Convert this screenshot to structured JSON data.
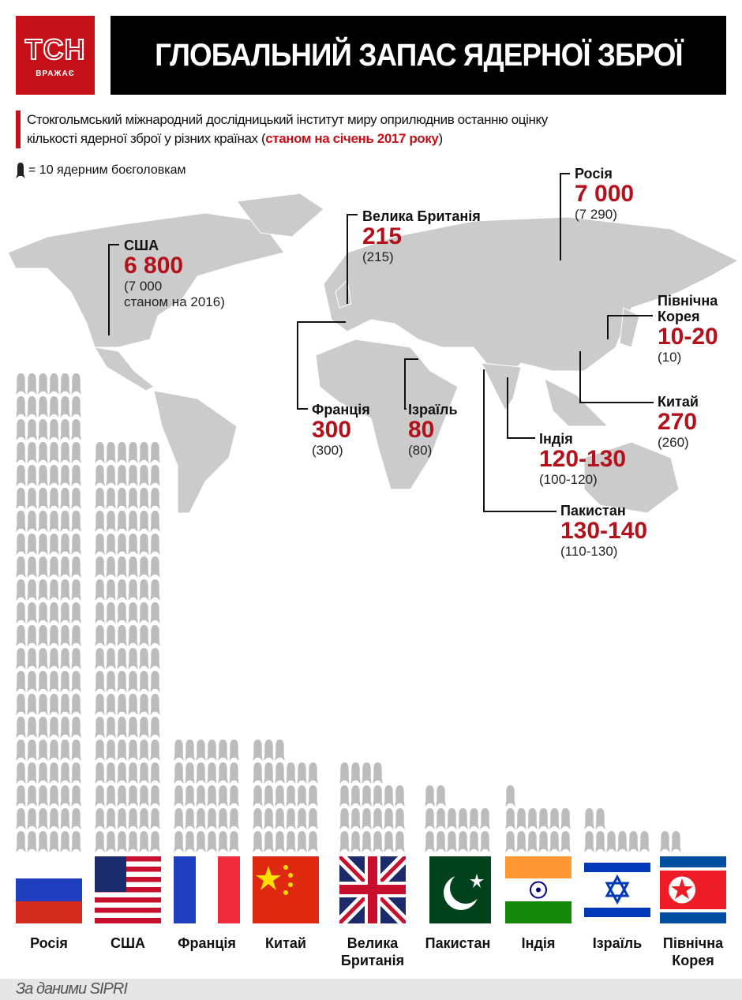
{
  "header": {
    "logo_text": "ТСН",
    "logo_sub": "ВРАЖАЄ",
    "title": "ГЛОБАЛЬНИЙ ЗАПАС ЯДЕРНОЇ ЗБРОЇ"
  },
  "intro": {
    "line1": "Стокгольмський міжнародний дослідницький інститут миру оприлюднив останню оцінку",
    "line2": "кількості ядерної зброї у різних країнах (",
    "highlight": "станом на січень 2017 року",
    "close": ")"
  },
  "legend": {
    "icon": "warhead-icon",
    "text": "= 10 ядерним боєголовкам"
  },
  "colors": {
    "accent": "#c5101a",
    "map": "#c8c8c8",
    "icon": "#bcbcbc"
  },
  "map_labels": [
    {
      "name": "Росія",
      "value": "7 000",
      "prev": "(7 290)"
    },
    {
      "name": "Велика Британія",
      "value": "215",
      "prev": "(215)"
    },
    {
      "name": "США",
      "value": "6 800",
      "prev": "(7 000",
      "prev2": "станом на 2016)"
    },
    {
      "name": "Північна",
      "name2": "Корея",
      "value": "10-20",
      "prev": "(10)"
    },
    {
      "name": "Франція",
      "value": "300",
      "prev": "(300)"
    },
    {
      "name": "Ізраїль",
      "value": "80",
      "prev": "(80)"
    },
    {
      "name": "Китай",
      "value": "270",
      "prev": "(260)"
    },
    {
      "name": "Індія",
      "value": "120-130",
      "prev": "(100-120)"
    },
    {
      "name": "Пакистан",
      "value": "130-140",
      "prev": "(110-130)"
    }
  ],
  "chart_data": {
    "type": "bar",
    "title": "ГЛОБАЛЬНИЙ ЗАПАС ЯДЕРНОЇ ЗБРОЇ",
    "unit": "= 10 ядерним боєголовкам",
    "categories": [
      "Росія",
      "США",
      "Франція",
      "Китай",
      "Велика Британія",
      "Пакистан",
      "Індія",
      "Ізраїль",
      "Північна Корея"
    ],
    "values": [
      7000,
      6800,
      300,
      270,
      215,
      135,
      125,
      80,
      15
    ],
    "value_labels": [
      "7 000",
      "6 800",
      "300",
      "270",
      "215",
      "130-140",
      "120-130",
      "80",
      "10-20"
    ],
    "flags": [
      "russia",
      "usa",
      "france",
      "china",
      "uk",
      "pakistan",
      "india",
      "israel",
      "north-korea"
    ]
  },
  "columns": [
    {
      "label": "Росія"
    },
    {
      "label": "США"
    },
    {
      "label": "Франція"
    },
    {
      "label": "Китай"
    },
    {
      "label": "Велика",
      "label2": "Британія"
    },
    {
      "label": "Пакистан"
    },
    {
      "label": "Індія"
    },
    {
      "label": "Ізраїль"
    },
    {
      "label": "Північна",
      "label2": "Корея"
    }
  ],
  "footer": {
    "source": "За даними SIPRI"
  }
}
